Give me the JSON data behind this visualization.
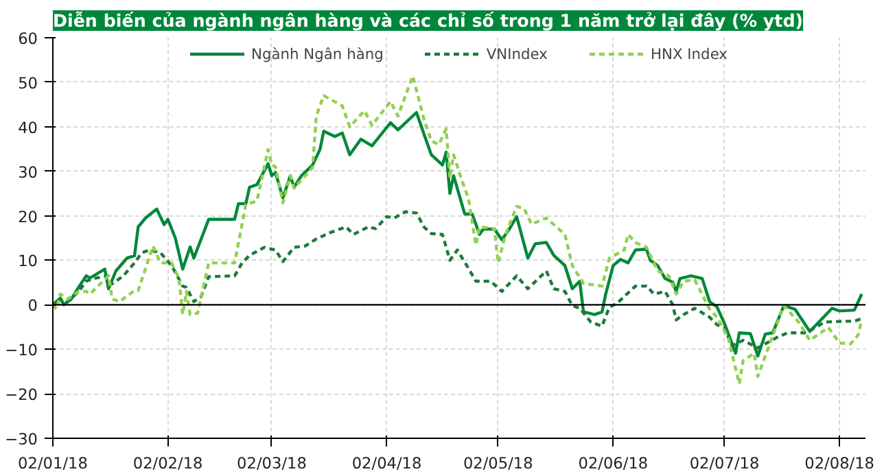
{
  "chart_data": {
    "type": "line",
    "title": "Diễn biến của ngành ngân hàng và các chỉ số trong 1 năm trở lại đây (% ytd)",
    "xlim": [
      "2018-01-02",
      "2018-08-09"
    ],
    "xticks": [
      {
        "value": "2018-01-02",
        "label": "02/01/18"
      },
      {
        "value": "2018-02-02",
        "label": "02/02/18"
      },
      {
        "value": "2018-03-02",
        "label": "02/03/18"
      },
      {
        "value": "2018-04-02",
        "label": "02/04/18"
      },
      {
        "value": "2018-05-02",
        "label": "02/05/18"
      },
      {
        "value": "2018-06-02",
        "label": "02/06/18"
      },
      {
        "value": "2018-07-02",
        "label": "02/07/18"
      },
      {
        "value": "2018-08-02",
        "label": "02/08/18"
      }
    ],
    "ylim": [
      -30,
      60
    ],
    "yticks": [
      -30,
      -20,
      -10,
      0,
      10,
      20,
      30,
      40,
      50,
      60
    ],
    "grid": true,
    "legend": "top",
    "ref_lines": [
      {
        "axis": "y",
        "value": 0,
        "color": "#000000"
      }
    ],
    "series": [
      {
        "name": "Ngành Ngân hàng",
        "color": "#00883a",
        "line_style": "solid",
        "x": [
          "2018-01-02",
          "2018-01-04",
          "2018-01-05",
          "2018-01-07",
          "2018-01-09",
          "2018-01-11",
          "2018-01-12",
          "2018-01-16",
          "2018-01-17",
          "2018-01-19",
          "2018-01-22",
          "2018-01-24",
          "2018-01-25",
          "2018-01-27",
          "2018-01-30",
          "2018-02-01",
          "2018-02-02",
          "2018-02-04",
          "2018-02-06",
          "2018-02-08",
          "2018-02-09",
          "2018-02-13",
          "2018-02-20",
          "2018-02-21",
          "2018-02-23",
          "2018-02-24",
          "2018-02-26",
          "2018-03-01",
          "2018-03-02",
          "2018-03-03",
          "2018-03-05",
          "2018-03-07",
          "2018-03-08",
          "2018-03-10",
          "2018-03-13",
          "2018-03-15",
          "2018-03-16",
          "2018-03-19",
          "2018-03-21",
          "2018-03-23",
          "2018-03-26",
          "2018-03-29",
          "2018-04-03",
          "2018-04-05",
          "2018-04-10",
          "2018-04-12",
          "2018-04-14",
          "2018-04-17",
          "2018-04-18",
          "2018-04-19",
          "2018-04-20",
          "2018-04-23",
          "2018-04-25",
          "2018-04-27",
          "2018-04-28",
          "2018-05-01",
          "2018-05-03",
          "2018-05-05",
          "2018-05-07",
          "2018-05-10",
          "2018-05-12",
          "2018-05-15",
          "2018-05-17",
          "2018-05-20",
          "2018-05-22",
          "2018-05-24",
          "2018-05-25",
          "2018-05-28",
          "2018-05-30",
          "2018-05-31",
          "2018-06-02",
          "2018-06-04",
          "2018-06-06",
          "2018-06-08",
          "2018-06-11",
          "2018-06-12",
          "2018-06-14",
          "2018-06-16",
          "2018-06-18",
          "2018-06-19",
          "2018-06-20",
          "2018-06-23",
          "2018-06-26",
          "2018-06-28",
          "2018-06-30",
          "2018-07-02",
          "2018-07-05",
          "2018-07-06",
          "2018-07-09",
          "2018-07-11",
          "2018-07-13",
          "2018-07-15",
          "2018-07-18",
          "2018-07-21",
          "2018-07-25",
          "2018-07-31",
          "2018-08-02",
          "2018-08-06",
          "2018-08-08"
        ],
        "values": [
          0,
          1.5,
          0,
          1.3,
          4,
          6.5,
          6,
          8,
          3.6,
          7.6,
          10.5,
          11,
          17.5,
          19.5,
          21.5,
          18,
          19.2,
          15,
          8,
          13,
          10.5,
          19.2,
          19.2,
          22.7,
          22.7,
          26.4,
          27,
          31.7,
          29,
          29.7,
          24,
          29,
          26.4,
          29,
          31.4,
          34.9,
          39,
          37.8,
          38.6,
          33.7,
          37.2,
          35.7,
          40.9,
          39.3,
          43.2,
          38.4,
          33.7,
          31.4,
          34.3,
          25,
          29,
          20.4,
          20.4,
          15.8,
          17,
          17,
          14.6,
          17,
          19.8,
          10.5,
          13.7,
          14,
          11.1,
          8.8,
          3.6,
          5.3,
          -1.6,
          -2.2,
          -1.6,
          2.4,
          8.8,
          10.2,
          9.4,
          12.3,
          12.5,
          10,
          8.8,
          5.9,
          5.1,
          3,
          5.9,
          6.5,
          5.9,
          0.7,
          -0.5,
          -4.2,
          -10.9,
          -6.3,
          -6.5,
          -11.5,
          -6.6,
          -6.3,
          -0.2,
          -1,
          -6,
          -0.8,
          -1.4,
          -1.2,
          2.4
        ]
      },
      {
        "name": "VNIndex",
        "color": "#1d7a3c",
        "line_style": "dashed",
        "x": [
          "2018-01-02",
          "2018-01-04",
          "2018-01-05",
          "2018-01-09",
          "2018-01-11",
          "2018-01-13",
          "2018-01-17",
          "2018-01-18",
          "2018-01-21",
          "2018-01-24",
          "2018-01-26",
          "2018-01-28",
          "2018-01-31",
          "2018-02-03",
          "2018-02-06",
          "2018-02-07",
          "2018-02-09",
          "2018-02-11",
          "2018-02-13",
          "2018-02-20",
          "2018-02-22",
          "2018-02-24",
          "2018-02-28",
          "2018-03-03",
          "2018-03-05",
          "2018-03-08",
          "2018-03-11",
          "2018-03-14",
          "2018-03-18",
          "2018-03-22",
          "2018-03-24",
          "2018-03-28",
          "2018-03-30",
          "2018-04-02",
          "2018-04-04",
          "2018-04-07",
          "2018-04-10",
          "2018-04-12",
          "2018-04-14",
          "2018-04-17",
          "2018-04-19",
          "2018-04-21",
          "2018-04-24",
          "2018-04-26",
          "2018-04-30",
          "2018-05-03",
          "2018-05-07",
          "2018-05-10",
          "2018-05-15",
          "2018-05-17",
          "2018-05-20",
          "2018-05-22",
          "2018-05-24",
          "2018-05-27",
          "2018-05-30",
          "2018-06-01",
          "2018-06-03",
          "2018-06-08",
          "2018-06-11",
          "2018-06-13",
          "2018-06-16",
          "2018-06-18",
          "2018-06-19",
          "2018-06-21",
          "2018-06-24",
          "2018-06-28",
          "2018-06-30",
          "2018-07-02",
          "2018-07-04",
          "2018-07-07",
          "2018-07-11",
          "2018-07-16",
          "2018-07-19",
          "2018-07-24",
          "2018-07-29",
          "2018-08-03",
          "2018-08-06",
          "2018-08-08"
        ],
        "values": [
          0,
          1.3,
          0,
          3,
          5.3,
          5.9,
          6.5,
          4.7,
          6.5,
          9.4,
          11.7,
          12.3,
          11.7,
          8.8,
          4.2,
          3.9,
          0.7,
          1.9,
          6.3,
          6.5,
          9.4,
          11.1,
          12.9,
          12.3,
          9.7,
          12.9,
          13.2,
          14.8,
          16.3,
          17.5,
          15.8,
          17.5,
          17.1,
          19.8,
          19.5,
          20.9,
          20.6,
          17.5,
          16,
          15.8,
          10,
          12.3,
          8.2,
          5.3,
          5.3,
          3,
          6.5,
          3.6,
          7.6,
          3.6,
          3,
          -0.2,
          -0.8,
          -3.9,
          -4.8,
          -0.5,
          0.3,
          4.2,
          4.2,
          2.4,
          3,
          0.1,
          -3.4,
          -2.2,
          -0.8,
          -2.8,
          -4.5,
          -5.1,
          -9.2,
          -8,
          -9.7,
          -7.4,
          -6.3,
          -6.3,
          -3.9,
          -3.7,
          -3.7,
          -3.1
        ]
      },
      {
        "name": "HNX Index",
        "color": "#92d050",
        "line_style": "dashed",
        "x": [
          "2018-01-02",
          "2018-01-03",
          "2018-01-04",
          "2018-01-06",
          "2018-01-09",
          "2018-01-11",
          "2018-01-12",
          "2018-01-17",
          "2018-01-18",
          "2018-01-20",
          "2018-01-24",
          "2018-01-25",
          "2018-01-29",
          "2018-01-31",
          "2018-02-03",
          "2018-02-05",
          "2018-02-06",
          "2018-02-07",
          "2018-02-08",
          "2018-02-10",
          "2018-02-13",
          "2018-02-20",
          "2018-02-23",
          "2018-02-26",
          "2018-03-01",
          "2018-03-02",
          "2018-03-03",
          "2018-03-05",
          "2018-03-07",
          "2018-03-08",
          "2018-03-13",
          "2018-03-14",
          "2018-03-16",
          "2018-03-21",
          "2018-03-23",
          "2018-03-27",
          "2018-03-29",
          "2018-04-03",
          "2018-04-05",
          "2018-04-09",
          "2018-04-12",
          "2018-04-14",
          "2018-04-16",
          "2018-04-18",
          "2018-04-19",
          "2018-04-20",
          "2018-04-22",
          "2018-04-24",
          "2018-04-26",
          "2018-04-27",
          "2018-05-01",
          "2018-05-02",
          "2018-05-04",
          "2018-05-07",
          "2018-05-09",
          "2018-05-11",
          "2018-05-15",
          "2018-05-20",
          "2018-05-22",
          "2018-05-25",
          "2018-05-30",
          "2018-06-01",
          "2018-06-05",
          "2018-06-06",
          "2018-06-08",
          "2018-06-11",
          "2018-06-14",
          "2018-06-17",
          "2018-06-19",
          "2018-06-21",
          "2018-06-24",
          "2018-06-28",
          "2018-06-30",
          "2018-07-03",
          "2018-07-06",
          "2018-07-07",
          "2018-07-10",
          "2018-07-11",
          "2018-07-14",
          "2018-07-18",
          "2018-07-22",
          "2018-07-25",
          "2018-07-30",
          "2018-08-02",
          "2018-08-05",
          "2018-08-07",
          "2018-08-08"
        ],
        "values": [
          0,
          -1,
          2.4,
          1.3,
          3,
          3,
          2.4,
          6.5,
          1.3,
          0.7,
          3.2,
          3.2,
          13.2,
          9.4,
          9.4,
          5.9,
          -2.2,
          3,
          -2.2,
          -1.9,
          9.4,
          9.4,
          22.5,
          23.3,
          34.9,
          31.4,
          31,
          22.9,
          29,
          26.2,
          30.8,
          42.4,
          47,
          44.7,
          40,
          43.6,
          40.3,
          45.7,
          42.4,
          51.4,
          41.8,
          36.8,
          36,
          39.5,
          28.5,
          33.7,
          28.5,
          23.9,
          13.4,
          17.5,
          17.1,
          9.4,
          15.8,
          22.1,
          21.6,
          18.1,
          19.5,
          15.8,
          8.8,
          4.8,
          4.2,
          10.5,
          12.3,
          15.8,
          14,
          12.9,
          7.6,
          6.5,
          2.4,
          5.3,
          5.6,
          -1,
          -2.8,
          -7.4,
          -17.8,
          -12.6,
          -10.9,
          -16.1,
          -9.2,
          -0.2,
          -3.9,
          -8,
          -5.1,
          -8.6,
          -8.8,
          -6.8,
          -3.4
        ]
      }
    ]
  }
}
